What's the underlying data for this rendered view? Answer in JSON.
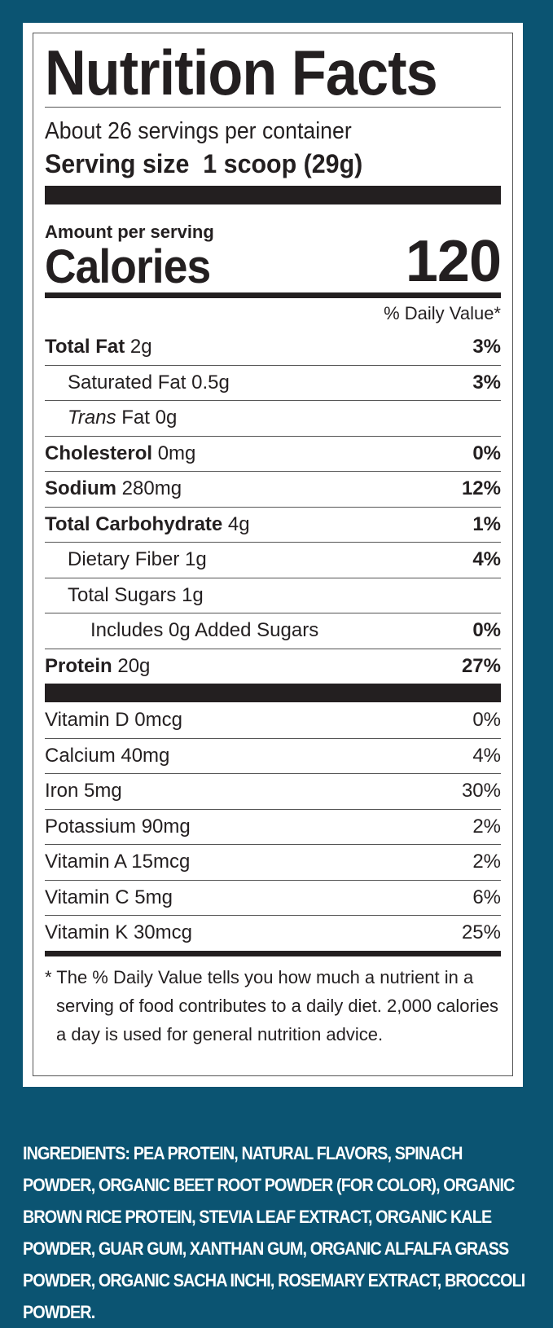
{
  "label": {
    "title": "Nutrition Facts",
    "servings": "About 26 servings per container",
    "serving_size_label": "Serving size",
    "serving_size_value": "1 scoop (29g)",
    "amount_per_serving": "Amount per serving",
    "calories_label": "Calories",
    "calories_value": "120",
    "dv_header": "% Daily Value*",
    "nutrients": [
      {
        "name": "Total Fat",
        "amount": "2g",
        "dv": "3%",
        "bold": true,
        "indent": 0
      },
      {
        "name": "Saturated Fat",
        "amount": "0.5g",
        "dv": "3%",
        "bold": false,
        "indent": 1
      },
      {
        "name": "Trans",
        "amount": "Fat 0g",
        "dv": "",
        "bold": false,
        "indent": 1
      },
      {
        "name": "Cholesterol",
        "amount": "0mg",
        "dv": "0%",
        "bold": true,
        "indent": 0
      },
      {
        "name": "Sodium",
        "amount": "280mg",
        "dv": "12%",
        "bold": true,
        "indent": 0
      },
      {
        "name": "Total Carbohydrate",
        "amount": "4g",
        "dv": "1%",
        "bold": true,
        "indent": 0
      },
      {
        "name": "Dietary Fiber",
        "amount": "1g",
        "dv": "4%",
        "bold": false,
        "indent": 1
      },
      {
        "name": "Total Sugars",
        "amount": "1g",
        "dv": "",
        "bold": false,
        "indent": 1
      },
      {
        "name": "Includes 0g Added Sugars",
        "amount": "",
        "dv": "0%",
        "bold": false,
        "indent": 2
      },
      {
        "name": "Protein",
        "amount": "20g",
        "dv": "27%",
        "bold": true,
        "indent": 0
      }
    ],
    "vitamins": [
      {
        "name": "Vitamin D 0mcg",
        "dv": "0%"
      },
      {
        "name": "Calcium 40mg",
        "dv": "4%"
      },
      {
        "name": "Iron 5mg",
        "dv": "30%"
      },
      {
        "name": "Potassium 90mg",
        "dv": "2%"
      },
      {
        "name": "Vitamin A 15mcg",
        "dv": "2%"
      },
      {
        "name": "Vitamin C 5mg",
        "dv": "6%"
      },
      {
        "name": "Vitamin K 30mcg",
        "dv": "25%"
      }
    ],
    "footnote": "* The % Daily Value tells you how much a nutrient in a serving of food contributes to a daily diet. 2,000 calories a day is used for general nutrition advice."
  },
  "ingredients": "INGREDIENTS: PEA PROTEIN, NATURAL FLAVORS, SPINACH POWDER, ORGANIC BEET ROOT POWDER (FOR COLOR), ORGANIC BROWN RICE PROTEIN, STEVIA LEAF EXTRACT, ORGANIC KALE POWDER, GUAR GUM, XANTHAN GUM, ORGANIC ALFALFA GRASS POWDER, ORGANIC SACHA INCHI, ROSEMARY EXTRACT, BROCCOLI POWDER.",
  "colors": {
    "background": "#0b5472",
    "text": "#231f20"
  }
}
